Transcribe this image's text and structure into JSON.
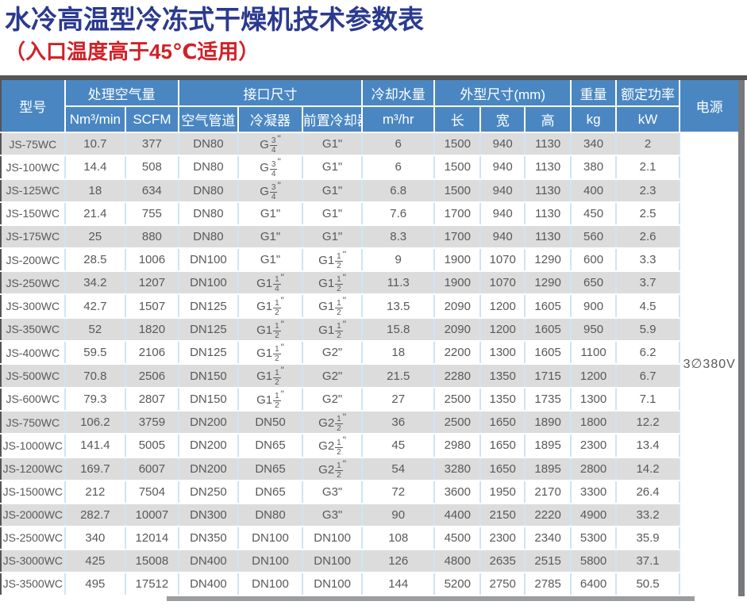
{
  "title": "水冷高温型冷冻式干燥机技术参数表",
  "subtitle": "（入口温度高于45℃适用）",
  "colors": {
    "title_blue": "#2b3a8e",
    "subtitle_red": "#cf2127",
    "header_blue": "#4a87c2",
    "row_stripe_gray": "#dcdcdc",
    "cell_text_gray": "#59595b",
    "divider_light_blue": "#cfe4f5",
    "frame_dark_gray": "#545557"
  },
  "table": {
    "headers": {
      "model": "型号",
      "air_volume": "处理空气量",
      "unit_nm3": "Nm³/min",
      "unit_scfm": "SCFM",
      "interface": "接口尺寸",
      "sub_air_pipe": "空气管道",
      "sub_condenser": "冷凝器",
      "sub_precooler": "前置冷却器",
      "cooling_water": "冷却水量",
      "unit_water": "m³/hr",
      "dimensions": "外型尺寸(mm)",
      "dim_length": "长",
      "dim_width": "宽",
      "dim_height": "高",
      "weight": "重量",
      "unit_weight": "kg",
      "rated_power": "额定功率",
      "unit_power": "kW",
      "power_supply": "电源"
    },
    "power_supply_value": "3∅380V",
    "rows": [
      {
        "model": "JS-75WC",
        "nm3_min": "10.7",
        "scfm": "377",
        "air_pipe": "DN80",
        "condenser": "G[3/4]\"",
        "precooler": "G1\"",
        "water_m3_hr": "6",
        "length": "1500",
        "width": "940",
        "height": "1130",
        "weight_kg": "340",
        "power_kw": "2"
      },
      {
        "model": "JS-100WC",
        "nm3_min": "14.4",
        "scfm": "508",
        "air_pipe": "DN80",
        "condenser": "G[3/4]\"",
        "precooler": "G1\"",
        "water_m3_hr": "6",
        "length": "1500",
        "width": "940",
        "height": "1130",
        "weight_kg": "380",
        "power_kw": "2.1"
      },
      {
        "model": "JS-125WC",
        "nm3_min": "18",
        "scfm": "634",
        "air_pipe": "DN80",
        "condenser": "G[3/4]\"",
        "precooler": "G1\"",
        "water_m3_hr": "6.8",
        "length": "1500",
        "width": "940",
        "height": "1130",
        "weight_kg": "400",
        "power_kw": "2.3"
      },
      {
        "model": "JS-150WC",
        "nm3_min": "21.4",
        "scfm": "755",
        "air_pipe": "DN80",
        "condenser": "G1\"",
        "precooler": "G1\"",
        "water_m3_hr": "7.6",
        "length": "1700",
        "width": "940",
        "height": "1130",
        "weight_kg": "450",
        "power_kw": "2.5"
      },
      {
        "model": "JS-175WC",
        "nm3_min": "25",
        "scfm": "880",
        "air_pipe": "DN80",
        "condenser": "G1\"",
        "precooler": "G1\"",
        "water_m3_hr": "8.3",
        "length": "1700",
        "width": "940",
        "height": "1130",
        "weight_kg": "560",
        "power_kw": "2.6"
      },
      {
        "model": "JS-200WC",
        "nm3_min": "28.5",
        "scfm": "1006",
        "air_pipe": "DN100",
        "condenser": "G1\"",
        "precooler": "G1[1/2]\"",
        "water_m3_hr": "9",
        "length": "1900",
        "width": "1070",
        "height": "1290",
        "weight_kg": "600",
        "power_kw": "3.3"
      },
      {
        "model": "JS-250WC",
        "nm3_min": "34.2",
        "scfm": "1207",
        "air_pipe": "DN100",
        "condenser": "G1[1/4]\"",
        "precooler": "G1[1/2]\"",
        "water_m3_hr": "11.3",
        "length": "1900",
        "width": "1070",
        "height": "1290",
        "weight_kg": "650",
        "power_kw": "3.7"
      },
      {
        "model": "JS-300WC",
        "nm3_min": "42.7",
        "scfm": "1507",
        "air_pipe": "DN125",
        "condenser": "G1[1/2]\"",
        "precooler": "G1[1/2]\"",
        "water_m3_hr": "13.5",
        "length": "2090",
        "width": "1200",
        "height": "1605",
        "weight_kg": "900",
        "power_kw": "4.5"
      },
      {
        "model": "JS-350WC",
        "nm3_min": "52",
        "scfm": "1820",
        "air_pipe": "DN125",
        "condenser": "G1[1/2]\"",
        "precooler": "G1[1/2]\"",
        "water_m3_hr": "15.8",
        "length": "2090",
        "width": "1200",
        "height": "1605",
        "weight_kg": "950",
        "power_kw": "5.9"
      },
      {
        "model": "JS-400WC",
        "nm3_min": "59.5",
        "scfm": "2106",
        "air_pipe": "DN125",
        "condenser": "G1[1/2]\"",
        "precooler": "G2\"",
        "water_m3_hr": "18",
        "length": "2200",
        "width": "1300",
        "height": "1605",
        "weight_kg": "1100",
        "power_kw": "6.2"
      },
      {
        "model": "JS-500WC",
        "nm3_min": "70.8",
        "scfm": "2506",
        "air_pipe": "DN150",
        "condenser": "G1[1/2]\"",
        "precooler": "G2\"",
        "water_m3_hr": "21.5",
        "length": "2280",
        "width": "1350",
        "height": "1715",
        "weight_kg": "1200",
        "power_kw": "6.7"
      },
      {
        "model": "JS-600WC",
        "nm3_min": "79.3",
        "scfm": "2807",
        "air_pipe": "DN150",
        "condenser": "G1[1/2]\"",
        "precooler": "G2\"",
        "water_m3_hr": "27",
        "length": "2500",
        "width": "1350",
        "height": "1735",
        "weight_kg": "1300",
        "power_kw": "7.1"
      },
      {
        "model": "JS-750WC",
        "nm3_min": "106.2",
        "scfm": "3759",
        "air_pipe": "DN200",
        "condenser": "DN50",
        "precooler": "G2[1/2]\"",
        "water_m3_hr": "36",
        "length": "2500",
        "width": "1650",
        "height": "1890",
        "weight_kg": "1800",
        "power_kw": "12.2"
      },
      {
        "model": "JS-1000WC",
        "nm3_min": "141.4",
        "scfm": "5005",
        "air_pipe": "DN200",
        "condenser": "DN65",
        "precooler": "G2[1/2]\"",
        "water_m3_hr": "45",
        "length": "2980",
        "width": "1650",
        "height": "1895",
        "weight_kg": "2300",
        "power_kw": "13.4"
      },
      {
        "model": "JS-1200WC",
        "nm3_min": "169.7",
        "scfm": "6007",
        "air_pipe": "DN200",
        "condenser": "DN65",
        "precooler": "G2[1/2]\"",
        "water_m3_hr": "54",
        "length": "3280",
        "width": "1650",
        "height": "1895",
        "weight_kg": "2800",
        "power_kw": "14.2"
      },
      {
        "model": "JS-1500WC",
        "nm3_min": "212",
        "scfm": "7504",
        "air_pipe": "DN250",
        "condenser": "DN65",
        "precooler": "G3\"",
        "water_m3_hr": "72",
        "length": "3600",
        "width": "1950",
        "height": "2170",
        "weight_kg": "3300",
        "power_kw": "26.4"
      },
      {
        "model": "JS-2000WC",
        "nm3_min": "282.7",
        "scfm": "10007",
        "air_pipe": "DN300",
        "condenser": "DN80",
        "precooler": "G3\"",
        "water_m3_hr": "90",
        "length": "4400",
        "width": "2150",
        "height": "2220",
        "weight_kg": "4900",
        "power_kw": "33.2"
      },
      {
        "model": "JS-2500WC",
        "nm3_min": "340",
        "scfm": "12014",
        "air_pipe": "DN350",
        "condenser": "DN100",
        "precooler": "DN100",
        "water_m3_hr": "108",
        "length": "4500",
        "width": "2300",
        "height": "2340",
        "weight_kg": "5300",
        "power_kw": "35.9"
      },
      {
        "model": "JS-3000WC",
        "nm3_min": "425",
        "scfm": "15008",
        "air_pipe": "DN400",
        "condenser": "DN100",
        "precooler": "DN100",
        "water_m3_hr": "126",
        "length": "4800",
        "width": "2635",
        "height": "2515",
        "weight_kg": "5800",
        "power_kw": "37.1"
      },
      {
        "model": "JS-3500WC",
        "nm3_min": "495",
        "scfm": "17512",
        "air_pipe": "DN400",
        "condenser": "DN100",
        "precooler": "DN100",
        "water_m3_hr": "144",
        "length": "5200",
        "width": "2750",
        "height": "2785",
        "weight_kg": "6400",
        "power_kw": "50.5"
      }
    ]
  }
}
